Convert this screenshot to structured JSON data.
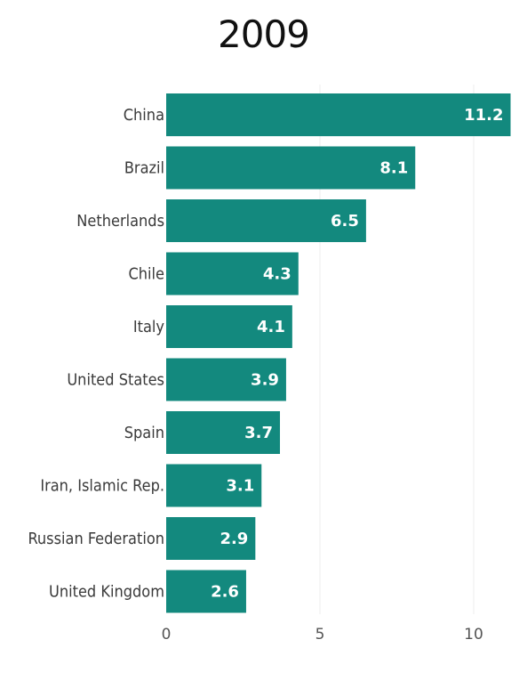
{
  "chart_data": {
    "type": "bar",
    "orientation": "horizontal",
    "title": "2009",
    "categories": [
      "China",
      "Brazil",
      "Netherlands",
      "Chile",
      "Italy",
      "United States",
      "Spain",
      "Iran, Islamic Rep.",
      "Russian Federation",
      "United Kingdom"
    ],
    "values": [
      11.2,
      8.1,
      6.5,
      4.3,
      4.1,
      3.9,
      3.7,
      3.1,
      2.9,
      2.6
    ],
    "value_labels": [
      "11.2",
      "8.1",
      "6.5",
      "4.3",
      "4.1",
      "3.9",
      "3.7",
      "3.1",
      "2.9",
      "2.6"
    ],
    "xticks": [
      "0",
      "5",
      "10"
    ],
    "xtick_values": [
      0,
      5,
      10
    ],
    "xlim": [
      0,
      11.2
    ],
    "grid": true,
    "bar_color": "#13897e",
    "grid_color": "#ececec"
  }
}
